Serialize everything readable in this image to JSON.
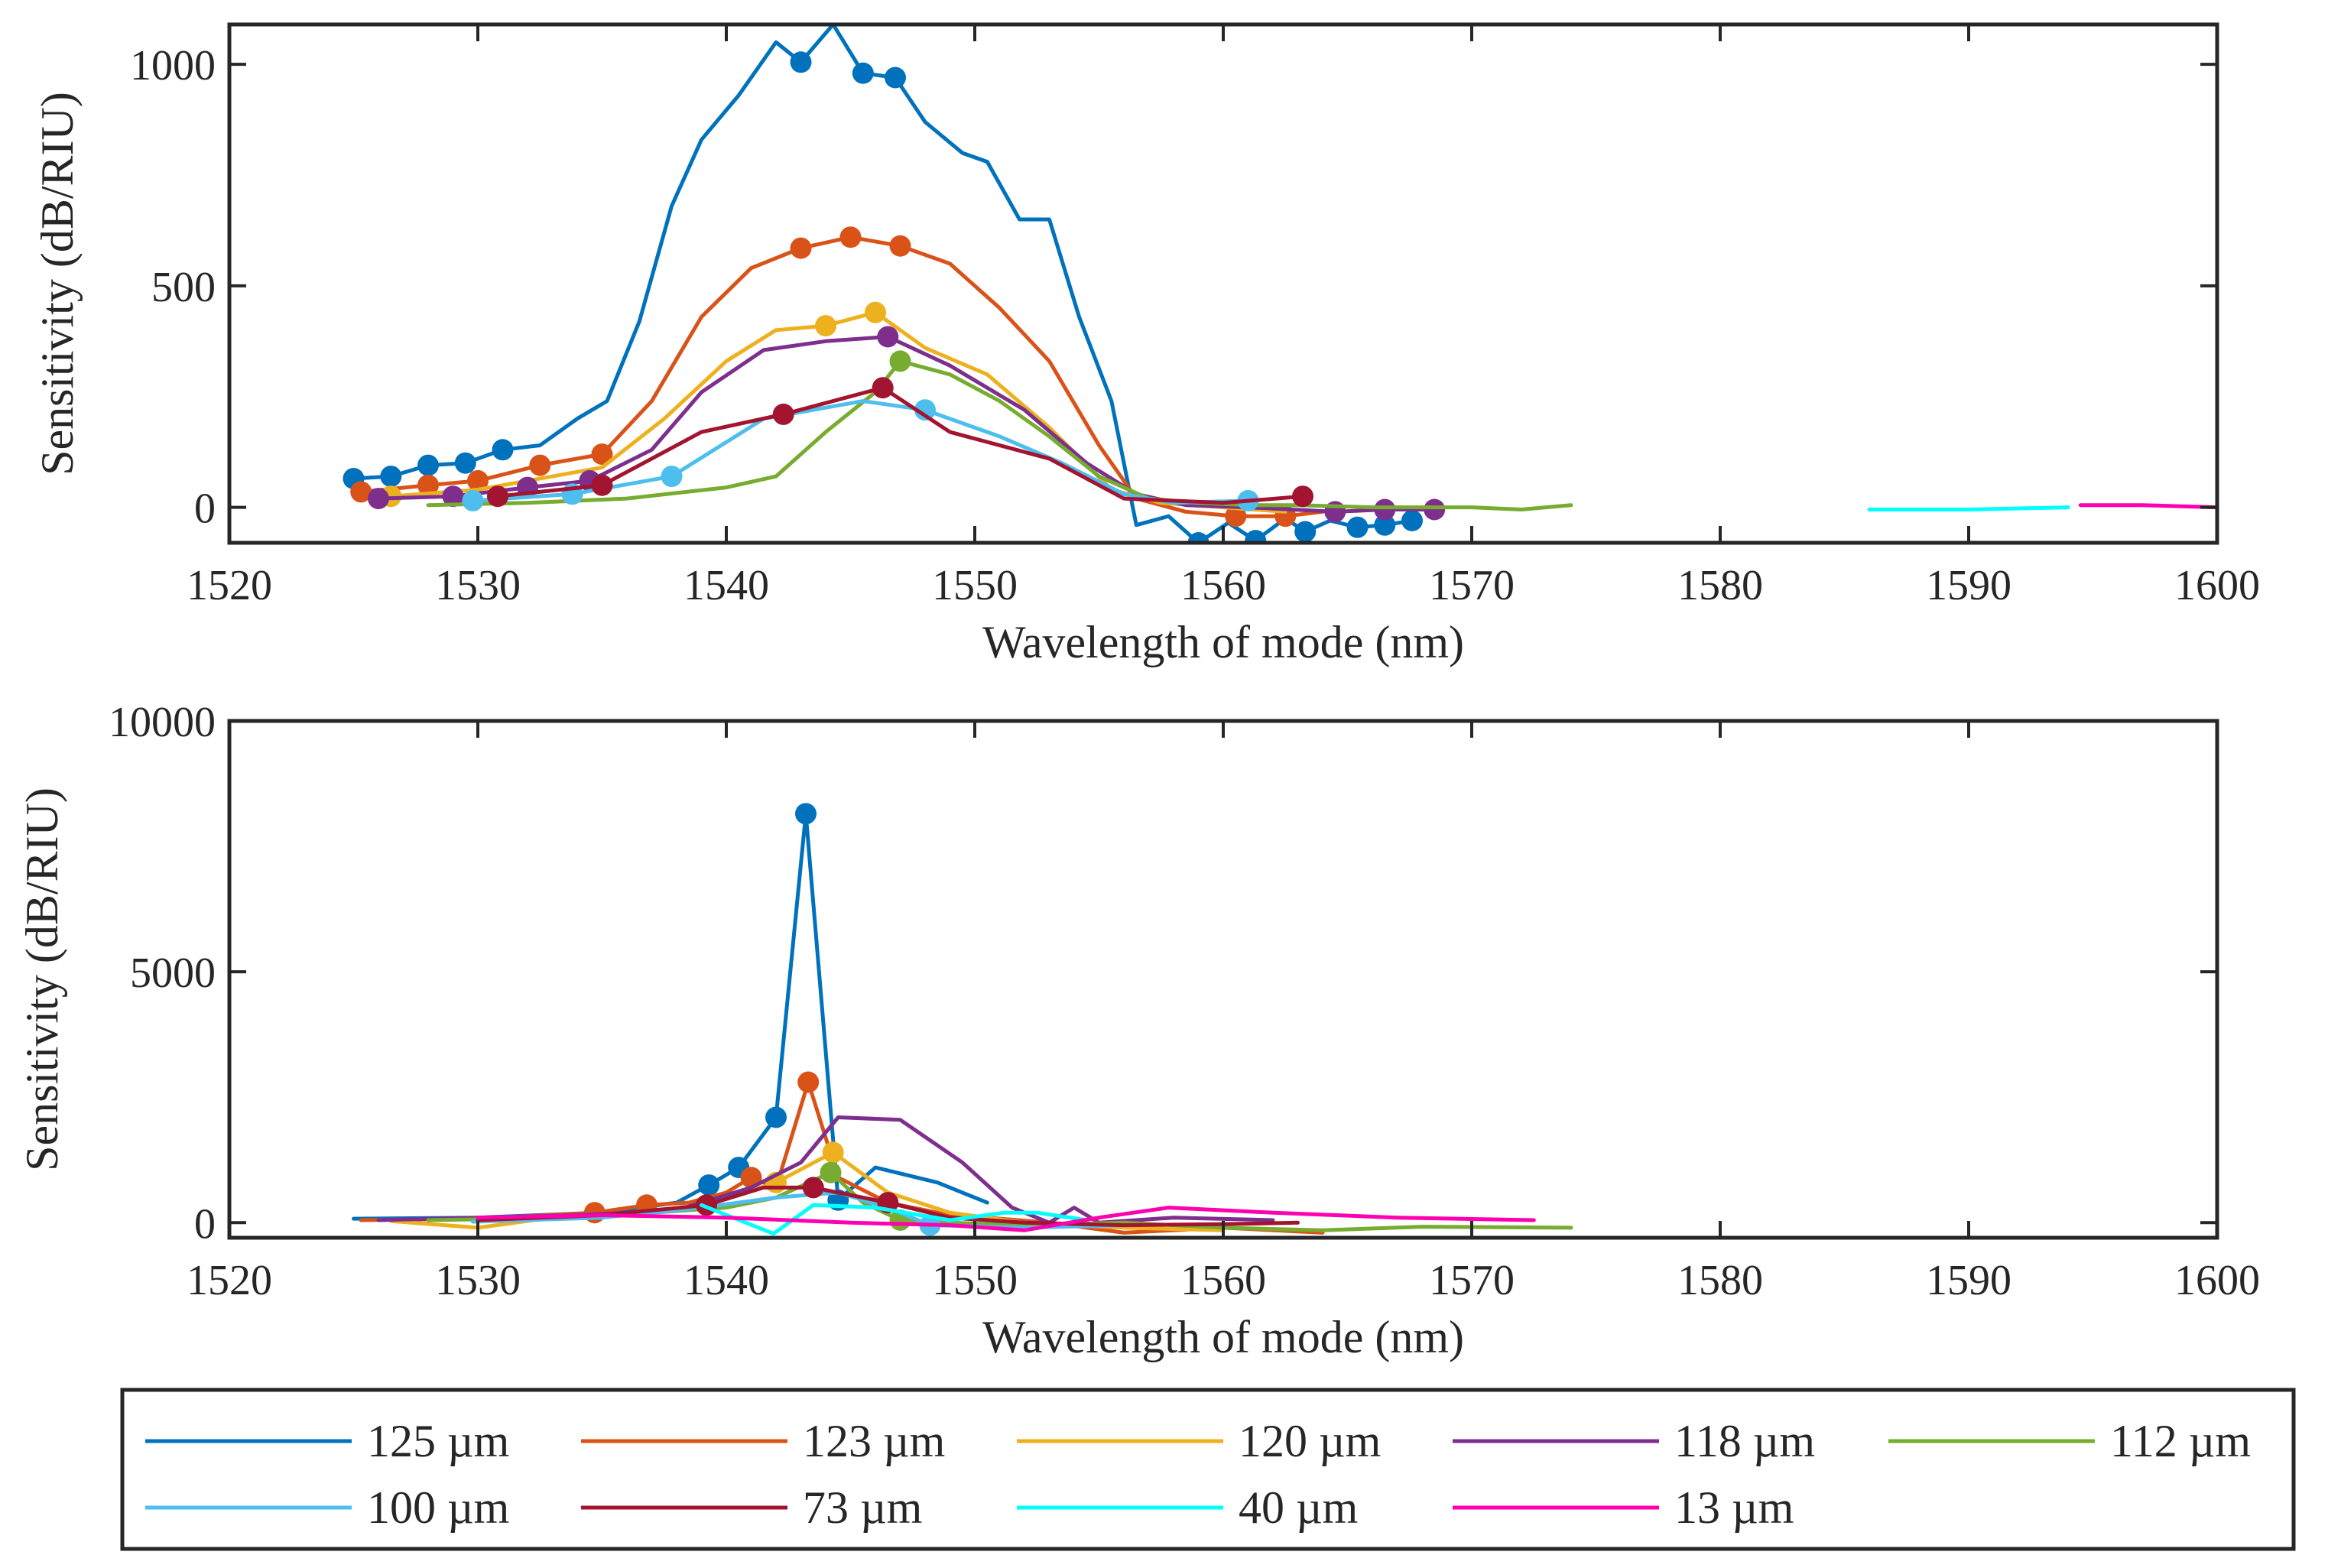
{
  "chart_data": [
    {
      "type": "line",
      "title": "",
      "xlabel": "Wavelength of mode (nm)",
      "ylabel": "Sensitivity (dB/RIU)",
      "xlim": [
        1520,
        1600
      ],
      "ylim": [
        -80,
        1090
      ],
      "xticks": [
        1520,
        1530,
        1540,
        1550,
        1560,
        1570,
        1580,
        1590,
        1600
      ],
      "yticks": [
        0,
        500,
        1000
      ],
      "grid": false,
      "series": [
        {
          "name": "125 µm",
          "color": "#0072BD",
          "x": [
            1525,
            1526.5,
            1528,
            1529.5,
            1531,
            1532.5,
            1534,
            1535.2,
            1536.5,
            1537.8,
            1539,
            1540.5,
            1542,
            1543,
            1544.3,
            1545.5,
            1546.8,
            1548,
            1549.5,
            1550.5,
            1551.8,
            1553,
            1554.2,
            1555.5,
            1556.5,
            1557.8,
            1559,
            1560.2,
            1561.3,
            1562.5,
            1563.3,
            1564.3,
            1565.4,
            1566.5,
            1567.6
          ],
          "y": [
            65,
            70,
            95,
            100,
            130,
            140,
            200,
            240,
            420,
            680,
            830,
            930,
            1050,
            1005,
            1090,
            980,
            970,
            870,
            800,
            780,
            650,
            650,
            430,
            240,
            -40,
            -20,
            -80,
            -35,
            -75,
            -25,
            -55,
            -30,
            -45,
            -40,
            -30
          ],
          "markers": [
            0,
            1,
            2,
            3,
            4,
            13,
            15,
            16,
            26,
            28,
            30,
            32,
            33,
            34
          ]
        },
        {
          "name": "123 µm",
          "color": "#D95319",
          "x": [
            1525.3,
            1528,
            1530,
            1532.5,
            1535,
            1537,
            1539,
            1541,
            1543,
            1545,
            1547,
            1549,
            1551,
            1553,
            1555,
            1556.5,
            1558.5,
            1560.5,
            1562.5,
            1564
          ],
          "y": [
            35,
            50,
            60,
            95,
            120,
            240,
            430,
            540,
            585,
            610,
            590,
            550,
            450,
            330,
            140,
            20,
            -10,
            -20,
            -20,
            -10
          ],
          "markers": [
            0,
            1,
            2,
            3,
            4,
            8,
            9,
            10,
            17,
            18
          ]
        },
        {
          "name": "120 µm",
          "color": "#EDB120",
          "x": [
            1526.5,
            1530,
            1533,
            1535,
            1537.5,
            1540,
            1542,
            1544,
            1546,
            1548,
            1550.5,
            1553,
            1555.5,
            1557.5,
            1560,
            1562.5
          ],
          "y": [
            25,
            40,
            70,
            90,
            200,
            330,
            400,
            410,
            440,
            360,
            300,
            180,
            40,
            10,
            0,
            -10
          ],
          "markers": [
            0,
            7,
            8
          ]
        },
        {
          "name": "118 µm",
          "color": "#7E2F8E",
          "x": [
            1526,
            1529,
            1532,
            1534.5,
            1537,
            1539,
            1541.5,
            1544,
            1546.5,
            1549,
            1552,
            1554.5,
            1556.5,
            1558.5,
            1561,
            1564.5,
            1566.5,
            1568.5
          ],
          "y": [
            20,
            25,
            45,
            60,
            130,
            260,
            355,
            375,
            385,
            320,
            220,
            100,
            30,
            5,
            0,
            -10,
            -5,
            -5
          ],
          "markers": [
            0,
            1,
            2,
            3,
            8,
            15,
            16,
            17
          ]
        },
        {
          "name": "112 µm",
          "color": "#77AC30",
          "x": [
            1528,
            1532,
            1536,
            1540,
            1542,
            1544,
            1546,
            1547,
            1549,
            1551,
            1553,
            1555,
            1557,
            1559,
            1561,
            1563,
            1566,
            1568,
            1570,
            1572,
            1574
          ],
          "y": [
            5,
            10,
            20,
            45,
            70,
            170,
            260,
            330,
            300,
            240,
            160,
            70,
            20,
            10,
            5,
            5,
            0,
            0,
            0,
            -5,
            5
          ],
          "markers": [
            7
          ]
        },
        {
          "name": "100 µm",
          "color": "#4DBEEE",
          "x": [
            1529.8,
            1533.8,
            1537.8,
            1541.5,
            1545.5,
            1548,
            1551,
            1553.5,
            1556,
            1558,
            1561
          ],
          "y": [
            15,
            30,
            70,
            200,
            240,
            220,
            160,
            100,
            30,
            10,
            15
          ],
          "markers": [
            0,
            1,
            2,
            5,
            10
          ]
        },
        {
          "name": "73 µm",
          "color": "#A2142F",
          "x": [
            1530.8,
            1535,
            1539,
            1542.3,
            1546.3,
            1549,
            1553,
            1556,
            1560,
            1563.2
          ],
          "y": [
            25,
            50,
            170,
            210,
            270,
            170,
            110,
            20,
            10,
            25
          ],
          "markers": [
            0,
            1,
            3,
            4,
            9
          ]
        },
        {
          "name": "40 µm",
          "color": "#00FFFF",
          "x": [
            1586,
            1590,
            1594
          ],
          "y": [
            -5,
            -5,
            0
          ],
          "markers": []
        },
        {
          "name": "13 µm",
          "color": "#FF00B0",
          "x": [
            1594.5,
            1597,
            1600
          ],
          "y": [
            5,
            5,
            0
          ],
          "markers": []
        }
      ]
    },
    {
      "type": "line",
      "title": "",
      "xlabel": "Wavelength of mode (nm)",
      "ylabel": "Sensitivity (dB/RIU)",
      "xlim": [
        1520,
        1600
      ],
      "ylim": [
        -300,
        10000
      ],
      "xticks": [
        1520,
        1530,
        1540,
        1550,
        1560,
        1570,
        1580,
        1590,
        1600
      ],
      "yticks": [
        0,
        5000,
        10000
      ],
      "grid": false,
      "series": [
        {
          "name": "125 µm",
          "color": "#0072BD",
          "x": [
            1525,
            1530,
            1535,
            1538,
            1539.3,
            1540.5,
            1542,
            1543.2,
            1544.5,
            1546,
            1548.5,
            1550.5
          ],
          "y": [
            80,
            100,
            200,
            400,
            750,
            1100,
            2100,
            8150,
            450,
            1100,
            800,
            400
          ],
          "markers": [
            4,
            5,
            6,
            7,
            8
          ]
        },
        {
          "name": "123 µm",
          "color": "#D95319",
          "x": [
            1525.3,
            1530,
            1534.7,
            1536.8,
            1538.5,
            1540,
            1541,
            1542,
            1543.3,
            1544.5,
            1546.5,
            1548.5,
            1550.5,
            1553,
            1556,
            1560,
            1564
          ],
          "y": [
            50,
            80,
            200,
            350,
            400,
            600,
            900,
            700,
            2800,
            900,
            400,
            200,
            100,
            0,
            -200,
            -100,
            -200
          ],
          "markers": [
            2,
            3,
            6,
            8
          ]
        },
        {
          "name": "120 µm",
          "color": "#EDB120",
          "x": [
            1526.5,
            1530,
            1533,
            1537,
            1539.5,
            1542,
            1544.3,
            1546.5,
            1549,
            1552,
            1556,
            1560
          ],
          "y": [
            30,
            -100,
            100,
            200,
            400,
            800,
            1400,
            600,
            200,
            0,
            -100,
            -150
          ],
          "markers": [
            5,
            6
          ]
        },
        {
          "name": "118 µm",
          "color": "#7E2F8E",
          "x": [
            1526,
            1530,
            1534,
            1538,
            1541,
            1543,
            1544.5,
            1547,
            1549.5,
            1551.5,
            1553,
            1554,
            1555,
            1558,
            1562
          ],
          "y": [
            50,
            100,
            150,
            250,
            700,
            1200,
            2100,
            2050,
            1200,
            300,
            0,
            300,
            0,
            100,
            50
          ],
          "markers": []
        },
        {
          "name": "112 µm",
          "color": "#77AC30",
          "x": [
            1528,
            1534,
            1540,
            1542,
            1544.2,
            1545.5,
            1547,
            1549,
            1552,
            1556,
            1560,
            1564,
            1568,
            1574
          ],
          "y": [
            50,
            100,
            300,
            500,
            1000,
            400,
            50,
            0,
            -50,
            0,
            -100,
            -150,
            -80,
            -100
          ],
          "markers": [
            4,
            6
          ]
        },
        {
          "name": "100 µm",
          "color": "#4DBEEE",
          "x": [
            1529.8,
            1535,
            1539,
            1542,
            1544.5,
            1546.5,
            1548.2,
            1552,
            1556
          ],
          "y": [
            20,
            100,
            300,
            500,
            600,
            300,
            -50,
            -100,
            -50
          ],
          "markers": [
            6
          ]
        },
        {
          "name": "73 µm",
          "color": "#A2142F",
          "x": [
            1530,
            1535,
            1539.2,
            1541.5,
            1543.5,
            1546.5,
            1549,
            1552,
            1556,
            1560,
            1563
          ],
          "y": [
            50,
            150,
            350,
            700,
            700,
            400,
            100,
            0,
            -50,
            -30,
            0
          ],
          "markers": [
            2,
            4,
            5
          ]
        },
        {
          "name": "40 µm",
          "color": "#00FFFF",
          "x": [
            1539,
            1541.9,
            1543.5,
            1546,
            1549,
            1551.2,
            1552.5,
            1554.5
          ],
          "y": [
            350,
            -220,
            350,
            300,
            50,
            200,
            200,
            50
          ],
          "markers": []
        },
        {
          "name": "13 µm",
          "color": "#FF00B0",
          "x": [
            1530,
            1535,
            1540,
            1545,
            1549,
            1552,
            1555,
            1557.8,
            1562,
            1567,
            1572.5
          ],
          "y": [
            100,
            150,
            100,
            0,
            -50,
            -150,
            100,
            300,
            200,
            100,
            50
          ],
          "markers": []
        }
      ]
    }
  ],
  "legend": {
    "placement": "bottom",
    "columns": 5,
    "entries": [
      "125 µm",
      "123 µm",
      "120 µm",
      "118 µm",
      "112 µm",
      "100 µm",
      "73 µm",
      "40 µm",
      "13 µm"
    ]
  }
}
